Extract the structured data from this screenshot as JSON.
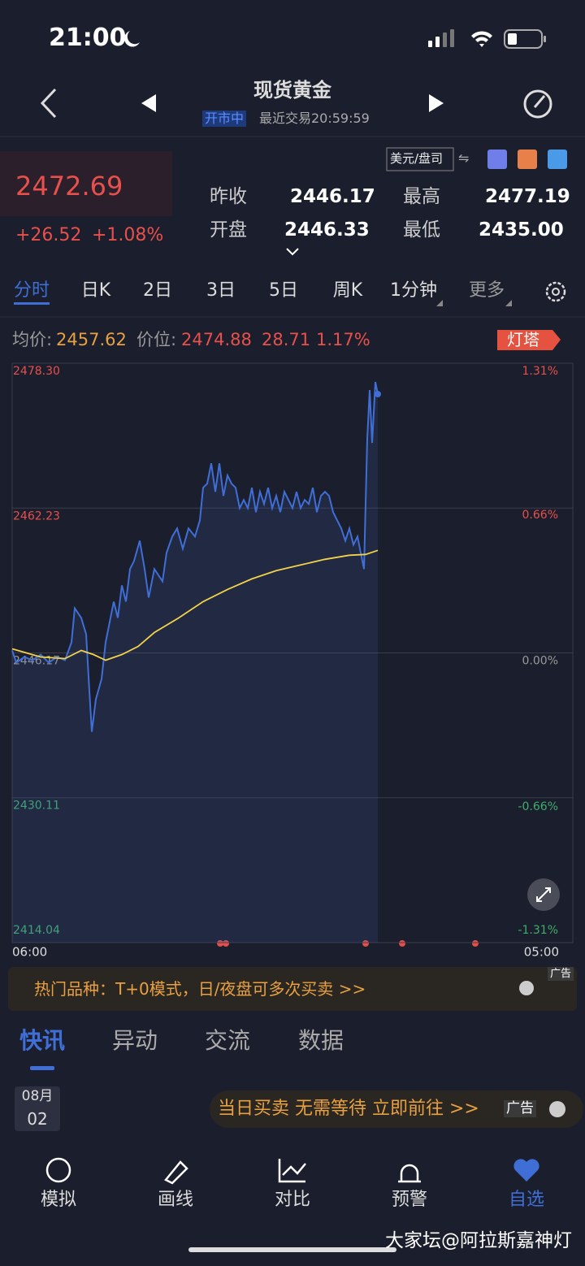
{
  "status_bar": {
    "time": "21:00"
  },
  "header": {
    "title": "现货黄金",
    "status": "开市中",
    "last_trade": "最近交易20:59:59"
  },
  "quote": {
    "price": "2472.69",
    "change": "+26.52",
    "change_pct": "+1.08%",
    "unit": "美元/盘司",
    "stats": [
      {
        "label": "昨收",
        "value": "2446.17"
      },
      {
        "label": "最高",
        "value": "2477.19"
      },
      {
        "label": "开盘",
        "value": "2446.33"
      },
      {
        "label": "最低",
        "value": "2435.00"
      }
    ]
  },
  "tabs": [
    "分时",
    "日K",
    "2日",
    "3日",
    "5日",
    "周K",
    "1分钟",
    "更多"
  ],
  "info": {
    "avg_label": "均价:",
    "avg": "2457.62",
    "pos_label": "价位:",
    "pos": "2474.88",
    "diff": "28.71",
    "diff_pct": "1.17%",
    "badge": "灯塔"
  },
  "chart_data": {
    "type": "line",
    "xlim": [
      0,
      1380
    ],
    "xticks": [
      {
        "value": 0,
        "label": "06:00"
      },
      {
        "value": 1380,
        "label": "05:00"
      }
    ],
    "ylim": [
      2414.04,
      2478.3
    ],
    "yticks": [
      {
        "value": 2478.3,
        "label": "2478.30"
      },
      {
        "value": 2462.23,
        "label": "2462.23"
      },
      {
        "value": 2446.17,
        "label": "2446.17"
      },
      {
        "value": 2430.11,
        "label": "2430.11"
      },
      {
        "value": 2414.04,
        "label": "2414.04"
      }
    ],
    "y2lim": [
      -1.31,
      1.31
    ],
    "y2ticks": [
      {
        "value": 1.31,
        "label": "1.31%"
      },
      {
        "value": 0.66,
        "label": "0.66%"
      },
      {
        "value": 0,
        "label": "0.00%"
      },
      {
        "value": -0.66,
        "label": "-0.66%"
      },
      {
        "value": -1.31,
        "label": "-1.31%"
      }
    ],
    "grid": true,
    "series": [
      {
        "color": "#3f6fd6",
        "x": [
          0,
          10,
          30,
          50,
          70,
          90,
          110,
          130,
          146,
          154,
          170,
          182,
          190,
          196,
          206,
          220,
          230,
          240,
          250,
          260,
          270,
          280,
          290,
          300,
          314,
          326,
          336,
          350,
          370,
          380,
          394,
          406,
          420,
          434,
          450,
          462,
          470,
          480,
          490,
          500,
          510,
          520,
          530,
          540,
          550,
          560,
          570,
          580,
          590,
          600,
          610,
          620,
          630,
          640,
          650,
          660,
          670,
          680,
          690,
          700,
          710,
          720,
          730,
          740,
          750,
          760,
          770,
          780,
          790,
          800,
          810,
          820,
          830,
          840,
          850,
          860,
          866,
          870,
          874,
          880,
          886,
          894,
          900
        ],
        "values": [
          2446.44,
          2445.09,
          2445.72,
          2445.36,
          2445.99,
          2445.09,
          2445.72,
          2445.36,
          2447.34,
          2451.13,
          2450.05,
          2448.25,
          2441.93,
          2437.42,
          2441.03,
          2443.28,
          2447.34,
          2449.6,
          2451.86,
          2450.05,
          2453.66,
          2451.86,
          2455.47,
          2456.37,
          2458.62,
          2455.47,
          2452.31,
          2455.47,
          2454.11,
          2457.27,
          2459.08,
          2459.98,
          2457.72,
          2459.98,
          2459.08,
          2460.88,
          2464.49,
          2464.94,
          2467.2,
          2464.04,
          2467.2,
          2463.59,
          2465.85,
          2464.94,
          2464.49,
          2462.23,
          2463.14,
          2462.23,
          2464.49,
          2461.78,
          2464.04,
          2462.69,
          2464.49,
          2462.23,
          2463.59,
          2461.78,
          2464.04,
          2463.14,
          2462.23,
          2464.04,
          2462.23,
          2463.14,
          2462.69,
          2464.49,
          2461.78,
          2463.59,
          2464.04,
          2463.59,
          2461.78,
          2460.88,
          2459.98,
          2458.62,
          2459.98,
          2458.17,
          2459.08,
          2456.82,
          2455.47,
          2462.69,
          2469.91,
          2475.32,
          2469.46,
          2476.22,
          2474.87
        ]
      },
      {
        "color": "#f2d24a",
        "x": [
          0,
          70,
          130,
          170,
          200,
          230,
          270,
          310,
          350,
          410,
          470,
          530,
          590,
          650,
          710,
          770,
          830,
          870,
          900
        ],
        "values": [
          2446.62,
          2445.72,
          2445.54,
          2446.44,
          2445.99,
          2445.36,
          2445.99,
          2446.89,
          2448.43,
          2450.05,
          2451.86,
          2453.21,
          2454.38,
          2455.29,
          2455.92,
          2456.55,
          2457.0,
          2457.09,
          2457.54
        ]
      }
    ]
  },
  "banner": {
    "text": "热门品种：T+0模式，日/夜盘可多次买卖 >>",
    "tag": "广告"
  },
  "news_tabs": [
    "快讯",
    "异动",
    "交流",
    "数据"
  ],
  "news": {
    "month": "08月",
    "day": "02",
    "ad": "当日买卖 无需等待 立即前往 >>",
    "tag": "广告"
  },
  "nav": [
    "模拟",
    "画线",
    "对比",
    "预警",
    "自选"
  ],
  "watermark": "大家坛@阿拉斯嘉神灯"
}
